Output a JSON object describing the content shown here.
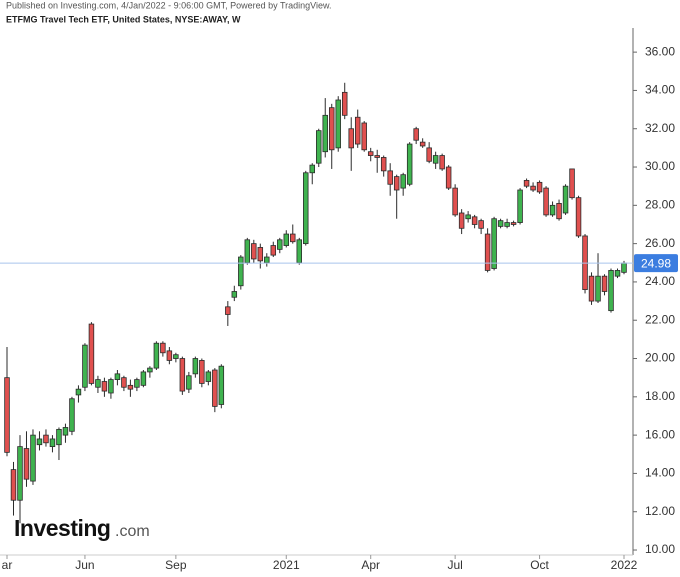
{
  "chart_data": {
    "type": "candlestick",
    "published": "Published on Investing.com, 4/Jan/2022 - 9:06:00 GMT, Powered by TradingView.",
    "title": "ETFMG Travel Tech ETF, United States, NYSE:AWAY, W",
    "logo": {
      "brand": "Investing",
      "suffix": ".com"
    },
    "up_color": "#3fb34f",
    "down_color": "#e0504f",
    "border_color": "#2b2b2b",
    "last_price": {
      "value": 24.98,
      "label": "24.98",
      "color": "#3b7de0"
    },
    "ylim": [
      9.74,
      37.26
    ],
    "yticks": [
      {
        "value": 10,
        "label": "10.00"
      },
      {
        "value": 12,
        "label": "12.00"
      },
      {
        "value": 14,
        "label": "14.00"
      },
      {
        "value": 16,
        "label": "16.00"
      },
      {
        "value": 18,
        "label": "18.00"
      },
      {
        "value": 20,
        "label": "20.00"
      },
      {
        "value": 22,
        "label": "22.00"
      },
      {
        "value": 24,
        "label": "24.00"
      },
      {
        "value": 26,
        "label": "26.00"
      },
      {
        "value": 28,
        "label": "28.00"
      },
      {
        "value": 30,
        "label": "30.00"
      },
      {
        "value": 32,
        "label": "32.00"
      },
      {
        "value": 34,
        "label": "34.00"
      },
      {
        "value": 36,
        "label": "36.00"
      }
    ],
    "xticks": [
      {
        "value": 0,
        "label": "ar"
      },
      {
        "value": 12,
        "label": "Jun"
      },
      {
        "value": 26,
        "label": "Sep"
      },
      {
        "value": 43,
        "label": "2021"
      },
      {
        "value": 56,
        "label": "Apr"
      },
      {
        "value": 69,
        "label": "Jul"
      },
      {
        "value": 82,
        "label": "Oct"
      },
      {
        "value": 95,
        "label": "2022"
      }
    ],
    "candles": [
      [
        19,
        20.6,
        14.9,
        15.1
      ],
      [
        14.2,
        14.6,
        11.8,
        12.6
      ],
      [
        12.6,
        16,
        11.4,
        15.4
      ],
      [
        15.3,
        16.2,
        13.3,
        13.7
      ],
      [
        13.6,
        16.3,
        13.4,
        16
      ],
      [
        15.5,
        16.2,
        15.2,
        15.8
      ],
      [
        16,
        16.3,
        15.4,
        15.6
      ],
      [
        15.4,
        16,
        15.1,
        15.8
      ],
      [
        15.5,
        16.4,
        14.7,
        16.3
      ],
      [
        16,
        16.6,
        15.6,
        16.4
      ],
      [
        16.2,
        18,
        16,
        17.9
      ],
      [
        18.1,
        18.6,
        17.7,
        18.4
      ],
      [
        18.5,
        20.8,
        18.3,
        20.7
      ],
      [
        21.8,
        21.9,
        18.6,
        18.7
      ],
      [
        18.5,
        19.1,
        18.2,
        18.9
      ],
      [
        18.8,
        19,
        18,
        18.3
      ],
      [
        18.2,
        19,
        17.9,
        18.9
      ],
      [
        18.9,
        19.4,
        18.6,
        19.2
      ],
      [
        19,
        19.1,
        18.3,
        18.5
      ],
      [
        18.6,
        18.9,
        18,
        18.4
      ],
      [
        18.5,
        19,
        18.3,
        18.9
      ],
      [
        18.6,
        19.4,
        18.5,
        19.3
      ],
      [
        19.3,
        19.6,
        19,
        19.5
      ],
      [
        19.5,
        20.9,
        19.4,
        20.8
      ],
      [
        20.8,
        20.9,
        20.1,
        20.3
      ],
      [
        20.4,
        20.6,
        19.7,
        19.9
      ],
      [
        20,
        20.3,
        19.8,
        20.2
      ],
      [
        20,
        20.1,
        18.1,
        18.3
      ],
      [
        18.4,
        19.3,
        18.2,
        19.1
      ],
      [
        19.2,
        20.1,
        19,
        20
      ],
      [
        19.9,
        20,
        18.5,
        18.7
      ],
      [
        18.8,
        19.4,
        18.6,
        19.3
      ],
      [
        19.4,
        19.5,
        17.2,
        17.5
      ],
      [
        17.6,
        19.7,
        17.4,
        19.6
      ],
      [
        22.7,
        23,
        21.7,
        22.3
      ],
      [
        23.2,
        23.8,
        23,
        23.5
      ],
      [
        23.8,
        25.4,
        23.6,
        25.3
      ],
      [
        25,
        26.3,
        24.9,
        26.2
      ],
      [
        26,
        26.2,
        25,
        25.2
      ],
      [
        25.8,
        26,
        24.7,
        25.1
      ],
      [
        25,
        25.5,
        24.8,
        25.3
      ],
      [
        25.9,
        26.1,
        25.3,
        25.4
      ],
      [
        25.7,
        26.3,
        25.5,
        26.2
      ],
      [
        25.9,
        26.7,
        25.8,
        26.5
      ],
      [
        26.5,
        27,
        26,
        26.1
      ],
      [
        25,
        26.3,
        24.9,
        26.2
      ],
      [
        26,
        29.8,
        25.9,
        29.7
      ],
      [
        29.7,
        30.2,
        29.1,
        30.1
      ],
      [
        30.2,
        32,
        30,
        31.9
      ],
      [
        30.8,
        33.6,
        30.5,
        32.7
      ],
      [
        33.1,
        33.3,
        29.9,
        30.9
      ],
      [
        31,
        33.7,
        30.8,
        33.5
      ],
      [
        33.9,
        34.4,
        32.5,
        32.7
      ],
      [
        32,
        32.6,
        29.8,
        31
      ],
      [
        32.6,
        33,
        31,
        31.2
      ],
      [
        32.3,
        32.4,
        30.8,
        30.9
      ],
      [
        30.8,
        31,
        30.3,
        30.6
      ],
      [
        30.6,
        30.9,
        29.7,
        30.5
      ],
      [
        30.5,
        30.6,
        29.5,
        29.8
      ],
      [
        29.8,
        30.2,
        28.5,
        29.1
      ],
      [
        29.5,
        29.6,
        27.3,
        28.8
      ],
      [
        28.9,
        29.7,
        28.5,
        29.6
      ],
      [
        29.1,
        31.3,
        29,
        31.2
      ],
      [
        32,
        32.1,
        31.2,
        31.4
      ],
      [
        31.3,
        31.5,
        31,
        31.1
      ],
      [
        31,
        31.3,
        30.2,
        30.3
      ],
      [
        30.2,
        30.8,
        29.9,
        30.6
      ],
      [
        30.6,
        30.7,
        29.8,
        29.9
      ],
      [
        30,
        30.1,
        28.8,
        28.9
      ],
      [
        28.9,
        29.1,
        27.4,
        27.5
      ],
      [
        27.6,
        27.8,
        26.5,
        26.8
      ],
      [
        27.3,
        27.7,
        27.1,
        27.5
      ],
      [
        27.4,
        27.5,
        26.8,
        27
      ],
      [
        27.2,
        27.3,
        26.5,
        26.8
      ],
      [
        26.5,
        26.8,
        24.5,
        24.6
      ],
      [
        24.7,
        27.4,
        24.6,
        27.3
      ],
      [
        26.9,
        27.3,
        26.8,
        27.2
      ],
      [
        26.9,
        27.3,
        26.8,
        27.1
      ],
      [
        27.1,
        27.2,
        26.9,
        27
      ],
      [
        27.1,
        28.9,
        27,
        28.8
      ],
      [
        29.3,
        29.4,
        28.9,
        29
      ],
      [
        29,
        29.2,
        28.7,
        28.8
      ],
      [
        29.2,
        29.3,
        28.6,
        28.7
      ],
      [
        28.9,
        29,
        27.4,
        27.5
      ],
      [
        27.5,
        28.2,
        27.4,
        28
      ],
      [
        28.1,
        28.3,
        27.2,
        27.3
      ],
      [
        27.6,
        29.1,
        27.5,
        29
      ],
      [
        29.9,
        29.9,
        28.3,
        28.4
      ],
      [
        28.4,
        28.5,
        26.3,
        26.4
      ],
      [
        26.4,
        26.5,
        23.4,
        23.6
      ],
      [
        24.3,
        24.5,
        22.8,
        23
      ],
      [
        23,
        25.5,
        22.9,
        24.3
      ],
      [
        24.3,
        24.4,
        23.3,
        23.5
      ],
      [
        22.5,
        24.7,
        22.4,
        24.6
      ],
      [
        24.3,
        24.7,
        24.2,
        24.6
      ],
      [
        24.5,
        25.1,
        24.4,
        24.98
      ]
    ]
  }
}
